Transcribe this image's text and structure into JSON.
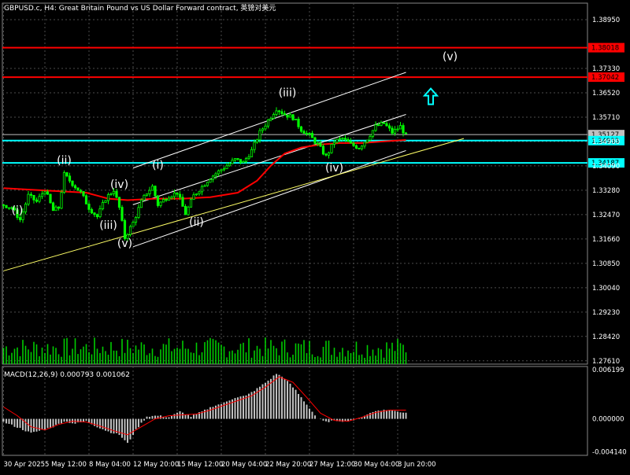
{
  "header": {
    "title": "GBPUSD.c, H4:  Great Britain Pound vs US Dollar Forward contract, 英镑对美元"
  },
  "colors": {
    "background": "#000000",
    "grid": "#4d4d4d",
    "candle": "#00ff00",
    "ma": "#ff0000",
    "channel": "#ffffff",
    "trendline": "#ffff66",
    "resistance": "#ff0000",
    "support": "#00ffff",
    "volume": "#00ff00",
    "macd_hist": "#c0c0c0",
    "macd_signal": "#ff0000",
    "arrow": "#00ffff",
    "text": "#ffffff"
  },
  "chart_data": [
    {
      "type": "candlestick",
      "symbol": "GBPUSD.c",
      "timeframe": "H4",
      "ylim": [
        1.275,
        1.395
      ],
      "price_axis_ticks": [
        "1.38950",
        "1.37330",
        "1.35710",
        "1.34090",
        "1.32470",
        "1.30850",
        "1.29230",
        "1.27610",
        "1.36520",
        "1.34900",
        "1.33280",
        "1.31660",
        "1.30040",
        "1.28420"
      ],
      "x_axis_labels": [
        {
          "label": "30 Apr 2025",
          "bar": 0
        },
        {
          "label": "5 May 12:00",
          "bar": 15
        },
        {
          "label": "8 May 04:00",
          "bar": 31
        },
        {
          "label": "12 May 20:00",
          "bar": 47
        },
        {
          "label": "15 May 12:00",
          "bar": 63
        },
        {
          "label": "20 May 04:00",
          "bar": 79
        },
        {
          "label": "22 May 20:00",
          "bar": 95
        },
        {
          "label": "27 May 12:00",
          "bar": 111
        },
        {
          "label": "30 May 04:00",
          "bar": 127
        },
        {
          "label": "3 Jun 20:00",
          "bar": 143
        }
      ],
      "close_path": [
        [
          0,
          1.328
        ],
        [
          3,
          1.327
        ],
        [
          6,
          1.323
        ],
        [
          9,
          1.331
        ],
        [
          12,
          1.329
        ],
        [
          15,
          1.333
        ],
        [
          18,
          1.326
        ],
        [
          20,
          1.327
        ],
        [
          22,
          1.338
        ],
        [
          25,
          1.335
        ],
        [
          28,
          1.332
        ],
        [
          31,
          1.327
        ],
        [
          34,
          1.324
        ],
        [
          37,
          1.33
        ],
        [
          40,
          1.333
        ],
        [
          42,
          1.327
        ],
        [
          44,
          1.317
        ],
        [
          47,
          1.322
        ],
        [
          50,
          1.329
        ],
        [
          52,
          1.332
        ],
        [
          54,
          1.334
        ],
        [
          56,
          1.328
        ],
        [
          60,
          1.331
        ],
        [
          63,
          1.332
        ],
        [
          66,
          1.325
        ],
        [
          69,
          1.331
        ],
        [
          72,
          1.334
        ],
        [
          75,
          1.337
        ],
        [
          78,
          1.339
        ],
        [
          81,
          1.341
        ],
        [
          84,
          1.343
        ],
        [
          87,
          1.342
        ],
        [
          90,
          1.346
        ],
        [
          93,
          1.352
        ],
        [
          96,
          1.356
        ],
        [
          99,
          1.36
        ],
        [
          102,
          1.358
        ],
        [
          105,
          1.357
        ],
        [
          108,
          1.353
        ],
        [
          111,
          1.351
        ],
        [
          114,
          1.348
        ],
        [
          117,
          1.344
        ],
        [
          120,
          1.349
        ],
        [
          123,
          1.35
        ],
        [
          126,
          1.348
        ],
        [
          129,
          1.347
        ],
        [
          132,
          1.35
        ],
        [
          135,
          1.354
        ],
        [
          138,
          1.355
        ],
        [
          141,
          1.352
        ],
        [
          144,
          1.354
        ],
        [
          146,
          1.351
        ]
      ],
      "moving_average": [
        [
          0,
          1.3335
        ],
        [
          10,
          1.333
        ],
        [
          20,
          1.3325
        ],
        [
          30,
          1.332
        ],
        [
          38,
          1.33
        ],
        [
          45,
          1.3295
        ],
        [
          55,
          1.33
        ],
        [
          65,
          1.33
        ],
        [
          75,
          1.3305
        ],
        [
          85,
          1.332
        ],
        [
          92,
          1.336
        ],
        [
          97,
          1.341
        ],
        [
          102,
          1.345
        ],
        [
          108,
          1.347
        ],
        [
          115,
          1.348
        ],
        [
          122,
          1.3485
        ],
        [
          130,
          1.3485
        ],
        [
          137,
          1.349
        ],
        [
          146,
          1.3495
        ]
      ],
      "horizontal_levels": [
        {
          "label": "1.38018",
          "value": 1.3802,
          "color": "#ff0000"
        },
        {
          "label": "1.37042",
          "value": 1.3704,
          "color": "#ff0000"
        },
        {
          "label": "1.35127",
          "value": 1.3513,
          "color": "#c0c0c0"
        },
        {
          "label": "1.34933",
          "value": 1.3493,
          "color": "#00ffff"
        },
        {
          "label": "1.34187",
          "value": 1.3419,
          "color": "#00ffff"
        }
      ],
      "wave_labels": [
        {
          "label": "(i)",
          "bar": 5,
          "price": 1.325
        },
        {
          "label": "(ii)",
          "bar": 22,
          "price": 1.3415
        },
        {
          "label": "(iii)",
          "bar": 38,
          "price": 1.32
        },
        {
          "label": "(iv)",
          "bar": 42,
          "price": 1.3335
        },
        {
          "label": "(v)",
          "bar": 44,
          "price": 1.314
        },
        {
          "label": "(i)",
          "bar": 56,
          "price": 1.34
        },
        {
          "label": "(ii)",
          "bar": 70,
          "price": 1.321
        },
        {
          "label": "(iii)",
          "bar": 103,
          "price": 1.364
        },
        {
          "label": "(iv)",
          "bar": 120,
          "price": 1.339
        },
        {
          "label": "(v)",
          "bar": 162,
          "price": 1.376
        }
      ],
      "signal_arrow": {
        "direction": "up",
        "bar": 155,
        "price": 1.364
      },
      "channel": {
        "upper": [
          [
            47,
            1.3402
          ],
          [
            146,
            1.372
          ]
        ],
        "middle": [
          [
            47,
            1.328
          ],
          [
            146,
            1.358
          ]
        ],
        "lower": [
          [
            47,
            1.314
          ],
          [
            146,
            1.346
          ]
        ],
        "trendline": [
          [
            0,
            1.306
          ],
          [
            167,
            1.35
          ]
        ]
      }
    },
    {
      "type": "bar",
      "name": "MACD(12,26,9)",
      "label": "MACD(12,26,9) 0.000793 0.001062",
      "ylim": [
        -0.0046,
        0.0066
      ],
      "ticks": [
        "0.006199",
        "0.000000",
        "-0.004140"
      ],
      "histogram": [
        [
          0,
          -0.0004
        ],
        [
          6,
          -0.0012
        ],
        [
          10,
          -0.0018
        ],
        [
          14,
          -0.0014
        ],
        [
          18,
          -0.001
        ],
        [
          22,
          -0.0003
        ],
        [
          26,
          -0.0006
        ],
        [
          30,
          -0.0003
        ],
        [
          34,
          -0.001
        ],
        [
          38,
          -0.0016
        ],
        [
          42,
          -0.002
        ],
        [
          45,
          -0.0031
        ],
        [
          48,
          -0.0014
        ],
        [
          52,
          0.0003
        ],
        [
          56,
          0.0004
        ],
        [
          60,
          0.0002
        ],
        [
          64,
          0.0009
        ],
        [
          68,
          0.0003
        ],
        [
          72,
          0.0009
        ],
        [
          76,
          0.0016
        ],
        [
          80,
          0.002
        ],
        [
          84,
          0.0027
        ],
        [
          88,
          0.0029
        ],
        [
          92,
          0.0038
        ],
        [
          96,
          0.0048
        ],
        [
          99,
          0.0057
        ],
        [
          102,
          0.0051
        ],
        [
          106,
          0.0036
        ],
        [
          110,
          0.0018
        ],
        [
          114,
          0.0
        ],
        [
          117,
          -0.0004
        ],
        [
          120,
          -0.0002
        ],
        [
          124,
          -0.0003
        ],
        [
          128,
          -0.0001
        ],
        [
          132,
          0.0006
        ],
        [
          136,
          0.0011
        ],
        [
          140,
          0.0011
        ],
        [
          143,
          0.0009
        ],
        [
          146,
          0.0008
        ]
      ],
      "signal": [
        [
          0,
          0.0015
        ],
        [
          5,
          0.0004
        ],
        [
          10,
          -0.001
        ],
        [
          15,
          -0.0014
        ],
        [
          20,
          -0.0007
        ],
        [
          25,
          -0.0003
        ],
        [
          30,
          -0.0004
        ],
        [
          35,
          -0.0009
        ],
        [
          40,
          -0.0015
        ],
        [
          45,
          -0.002
        ],
        [
          50,
          -0.001
        ],
        [
          55,
          0.0
        ],
        [
          60,
          0.0004
        ],
        [
          65,
          0.0005
        ],
        [
          70,
          0.0006
        ],
        [
          75,
          0.0011
        ],
        [
          80,
          0.0017
        ],
        [
          85,
          0.0023
        ],
        [
          90,
          0.0029
        ],
        [
          95,
          0.004
        ],
        [
          100,
          0.0053
        ],
        [
          105,
          0.0046
        ],
        [
          110,
          0.0027
        ],
        [
          115,
          0.0007
        ],
        [
          120,
          -0.0002
        ],
        [
          125,
          -0.0003
        ],
        [
          130,
          0.0002
        ],
        [
          135,
          0.0008
        ],
        [
          140,
          0.0011
        ],
        [
          146,
          0.0011
        ]
      ]
    }
  ]
}
